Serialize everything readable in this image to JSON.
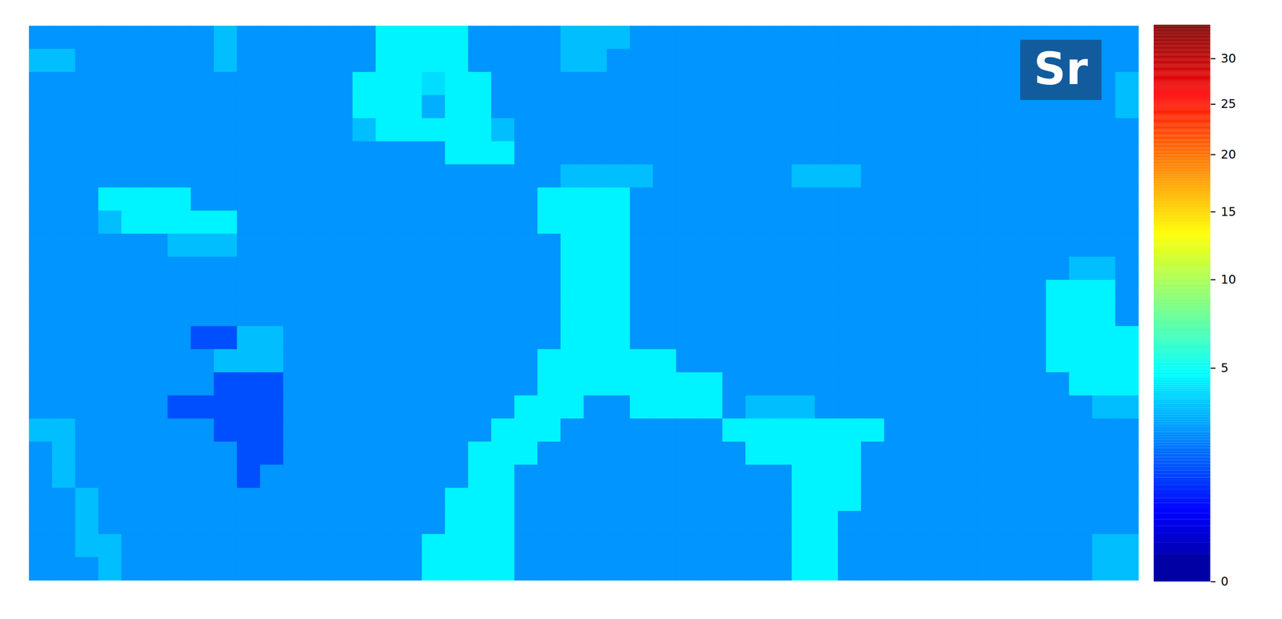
{
  "chart_data": {
    "type": "heatmap",
    "annotations": [
      {
        "text": "Sr"
      }
    ],
    "colorbar": {
      "range": [
        0,
        34
      ],
      "ticks": [
        0,
        5,
        10,
        15,
        20,
        25,
        30
      ]
    },
    "cells": [
      [
        2.5,
        2.5,
        2.5,
        2.5,
        2.5,
        2.5,
        2.5,
        2.5,
        3.3,
        2.5,
        2.5,
        2.5,
        2.5,
        2.5,
        2.5,
        4.5,
        4.5,
        4.5,
        4.5,
        2.5,
        2.5,
        2.5,
        2.5,
        3.3,
        3.3,
        3.3,
        2.5,
        2.5,
        2.5,
        2.5,
        2.5,
        2.5,
        2.5,
        2.5,
        2.5,
        2.5,
        2.5,
        2.5,
        2.5,
        2.5,
        2.5,
        2.5,
        2.5,
        2.5,
        2.5,
        2.5,
        2.5,
        2.5
      ],
      [
        3.3,
        3.3,
        2.5,
        2.5,
        2.5,
        2.5,
        2.5,
        2.5,
        3.3,
        2.5,
        2.5,
        2.5,
        2.5,
        2.5,
        2.5,
        4.5,
        4.5,
        4.5,
        4.5,
        2.5,
        2.5,
        2.5,
        2.5,
        3.3,
        3.3,
        2.5,
        2.5,
        2.5,
        2.5,
        2.5,
        2.5,
        2.5,
        2.5,
        2.5,
        2.5,
        2.5,
        2.5,
        2.5,
        2.5,
        2.5,
        2.5,
        2.5,
        2.5,
        2.5,
        2.5,
        2.5,
        2.5,
        2.5
      ],
      [
        2.5,
        2.5,
        2.5,
        2.5,
        2.5,
        2.5,
        2.5,
        2.5,
        2.5,
        2.5,
        2.5,
        2.5,
        2.5,
        2.5,
        4.5,
        4.5,
        4.5,
        4.0,
        4.5,
        4.5,
        2.5,
        2.5,
        2.5,
        2.5,
        2.5,
        2.5,
        2.5,
        2.5,
        2.5,
        2.5,
        2.5,
        2.5,
        2.5,
        2.5,
        2.5,
        2.5,
        2.5,
        2.5,
        2.5,
        2.5,
        2.5,
        2.5,
        2.5,
        2.5,
        2.5,
        2.5,
        2.5,
        3.3
      ],
      [
        2.5,
        2.5,
        2.5,
        2.5,
        2.5,
        2.5,
        2.5,
        2.5,
        2.5,
        2.5,
        2.5,
        2.5,
        2.5,
        2.5,
        4.5,
        4.5,
        4.5,
        3.0,
        4.5,
        4.5,
        2.5,
        2.5,
        2.5,
        2.5,
        2.5,
        2.5,
        2.5,
        2.5,
        2.5,
        2.5,
        2.5,
        2.5,
        2.5,
        2.5,
        2.5,
        2.5,
        2.5,
        2.5,
        2.5,
        2.5,
        2.5,
        2.5,
        2.5,
        2.5,
        2.5,
        2.5,
        2.5,
        3.3
      ],
      [
        2.5,
        2.5,
        2.5,
        2.5,
        2.5,
        2.5,
        2.5,
        2.5,
        2.5,
        2.5,
        2.5,
        2.5,
        2.5,
        2.5,
        3.3,
        4.5,
        4.5,
        4.5,
        4.5,
        4.5,
        3.3,
        2.5,
        2.5,
        2.5,
        2.5,
        2.5,
        2.5,
        2.5,
        2.5,
        2.5,
        2.5,
        2.5,
        2.5,
        2.5,
        2.5,
        2.5,
        2.5,
        2.5,
        2.5,
        2.5,
        2.5,
        2.5,
        2.5,
        2.5,
        2.5,
        2.5,
        2.5,
        2.5
      ],
      [
        2.5,
        2.5,
        2.5,
        2.5,
        2.5,
        2.5,
        2.5,
        2.5,
        2.5,
        2.5,
        2.5,
        2.5,
        2.5,
        2.5,
        2.5,
        2.5,
        2.5,
        2.5,
        4.5,
        4.5,
        4.5,
        2.5,
        2.5,
        2.5,
        2.5,
        2.5,
        2.5,
        2.5,
        2.5,
        2.5,
        2.5,
        2.5,
        2.5,
        2.5,
        2.5,
        2.5,
        2.5,
        2.5,
        2.5,
        2.5,
        2.5,
        2.5,
        2.5,
        2.5,
        2.5,
        2.5,
        2.5,
        2.5
      ],
      [
        2.5,
        2.5,
        2.5,
        2.5,
        2.5,
        2.5,
        2.5,
        2.5,
        2.5,
        2.5,
        2.5,
        2.5,
        2.5,
        2.5,
        2.5,
        2.5,
        2.5,
        2.5,
        2.5,
        2.5,
        2.5,
        2.5,
        2.5,
        3.3,
        3.3,
        3.3,
        3.3,
        2.5,
        2.5,
        2.5,
        2.5,
        2.5,
        2.5,
        3.3,
        3.3,
        3.3,
        2.5,
        2.5,
        2.5,
        2.5,
        2.5,
        2.5,
        2.5,
        2.5,
        2.5,
        2.5,
        2.5,
        2.5
      ],
      [
        2.5,
        2.5,
        2.5,
        4.5,
        4.5,
        4.5,
        4.5,
        2.5,
        2.5,
        2.5,
        2.5,
        2.5,
        2.5,
        2.5,
        2.5,
        2.5,
        2.5,
        2.5,
        2.5,
        2.5,
        2.5,
        2.5,
        4.5,
        4.5,
        4.5,
        4.5,
        2.5,
        2.5,
        2.5,
        2.5,
        2.5,
        2.5,
        2.5,
        2.5,
        2.5,
        2.5,
        2.5,
        2.5,
        2.5,
        2.5,
        2.5,
        2.5,
        2.5,
        2.5,
        2.5,
        2.5,
        2.5,
        2.5
      ],
      [
        2.5,
        2.5,
        2.5,
        3.3,
        4.5,
        4.5,
        4.5,
        4.5,
        4.5,
        2.5,
        2.5,
        2.5,
        2.5,
        2.5,
        2.5,
        2.5,
        2.5,
        2.5,
        2.5,
        2.5,
        2.5,
        2.5,
        4.5,
        4.5,
        4.5,
        4.5,
        2.5,
        2.5,
        2.5,
        2.5,
        2.5,
        2.5,
        2.5,
        2.5,
        2.5,
        2.5,
        2.5,
        2.5,
        2.5,
        2.5,
        2.5,
        2.5,
        2.5,
        2.5,
        2.5,
        2.5,
        2.5,
        2.5
      ],
      [
        2.5,
        2.5,
        2.5,
        2.5,
        2.5,
        2.5,
        3.3,
        3.3,
        3.3,
        2.5,
        2.5,
        2.5,
        2.5,
        2.5,
        2.5,
        2.5,
        2.5,
        2.5,
        2.5,
        2.5,
        2.5,
        2.5,
        2.5,
        4.5,
        4.5,
        4.5,
        2.5,
        2.5,
        2.5,
        2.5,
        2.5,
        2.5,
        2.5,
        2.5,
        2.5,
        2.5,
        2.5,
        2.5,
        2.5,
        2.5,
        2.5,
        2.5,
        2.5,
        2.5,
        2.5,
        2.5,
        2.5,
        2.5
      ],
      [
        2.5,
        2.5,
        2.5,
        2.5,
        2.5,
        2.5,
        2.5,
        2.5,
        2.5,
        2.5,
        2.5,
        2.5,
        2.5,
        2.5,
        2.5,
        2.5,
        2.5,
        2.5,
        2.5,
        2.5,
        2.5,
        2.5,
        2.5,
        4.5,
        4.5,
        4.5,
        2.5,
        2.5,
        2.5,
        2.5,
        2.5,
        2.5,
        2.5,
        2.5,
        2.5,
        2.5,
        2.5,
        2.5,
        2.5,
        2.5,
        2.5,
        2.5,
        2.5,
        2.5,
        2.5,
        3.3,
        3.3,
        2.5
      ],
      [
        2.5,
        2.5,
        2.5,
        2.5,
        2.5,
        2.5,
        2.5,
        2.5,
        2.5,
        2.5,
        2.5,
        2.5,
        2.5,
        2.5,
        2.5,
        2.5,
        2.5,
        2.5,
        2.5,
        2.5,
        2.5,
        2.5,
        2.5,
        4.5,
        4.5,
        4.5,
        2.5,
        2.5,
        2.5,
        2.5,
        2.5,
        2.5,
        2.5,
        2.5,
        2.5,
        2.5,
        2.5,
        2.5,
        2.5,
        2.5,
        2.5,
        2.5,
        2.5,
        2.5,
        4.5,
        4.5,
        4.5,
        2.5
      ],
      [
        2.5,
        2.5,
        2.5,
        2.5,
        2.5,
        2.5,
        2.5,
        2.5,
        2.5,
        2.5,
        2.5,
        2.5,
        2.5,
        2.5,
        2.5,
        2.5,
        2.5,
        2.5,
        2.5,
        2.5,
        2.5,
        2.5,
        2.5,
        4.5,
        4.5,
        4.5,
        2.5,
        2.5,
        2.5,
        2.5,
        2.5,
        2.5,
        2.5,
        2.5,
        2.5,
        2.5,
        2.5,
        2.5,
        2.5,
        2.5,
        2.5,
        2.5,
        2.5,
        2.5,
        4.5,
        4.5,
        4.5,
        2.5
      ],
      [
        2.5,
        2.5,
        2.5,
        2.5,
        2.5,
        2.5,
        2.5,
        1.4,
        1.4,
        3.3,
        3.3,
        2.5,
        2.5,
        2.5,
        2.5,
        2.5,
        2.5,
        2.5,
        2.5,
        2.5,
        2.5,
        2.5,
        2.5,
        4.5,
        4.5,
        4.5,
        2.5,
        2.5,
        2.5,
        2.5,
        2.5,
        2.5,
        2.5,
        2.5,
        2.5,
        2.5,
        2.5,
        2.5,
        2.5,
        2.5,
        2.5,
        2.5,
        2.5,
        2.5,
        4.5,
        4.5,
        4.5,
        4.5
      ],
      [
        2.5,
        2.5,
        2.5,
        2.5,
        2.5,
        2.5,
        2.5,
        2.5,
        3.3,
        3.3,
        3.3,
        2.5,
        2.5,
        2.5,
        2.5,
        2.5,
        2.5,
        2.5,
        2.5,
        2.5,
        2.5,
        2.5,
        4.5,
        4.5,
        4.5,
        4.5,
        4.5,
        4.5,
        2.5,
        2.5,
        2.5,
        2.5,
        2.5,
        2.5,
        2.5,
        2.5,
        2.5,
        2.5,
        2.5,
        2.5,
        2.5,
        2.5,
        2.5,
        2.5,
        4.5,
        4.5,
        4.5,
        4.5
      ],
      [
        2.5,
        2.5,
        2.5,
        2.5,
        2.5,
        2.5,
        2.5,
        2.5,
        1.4,
        1.4,
        1.4,
        2.5,
        2.5,
        2.5,
        2.5,
        2.5,
        2.5,
        2.5,
        2.5,
        2.5,
        2.5,
        2.5,
        4.5,
        4.5,
        4.5,
        4.5,
        4.5,
        4.5,
        4.5,
        4.5,
        2.5,
        2.5,
        2.5,
        2.5,
        2.5,
        2.5,
        2.5,
        2.5,
        2.5,
        2.5,
        2.5,
        2.5,
        2.5,
        2.5,
        2.5,
        4.5,
        4.5,
        4.5
      ],
      [
        2.5,
        2.5,
        2.5,
        2.5,
        2.5,
        2.5,
        1.4,
        1.4,
        1.4,
        1.4,
        1.4,
        2.5,
        2.5,
        2.5,
        2.5,
        2.5,
        2.5,
        2.5,
        2.5,
        2.5,
        2.5,
        4.5,
        4.5,
        4.5,
        2.5,
        2.5,
        4.5,
        4.5,
        4.5,
        4.5,
        2.5,
        3.3,
        3.3,
        3.3,
        2.5,
        2.5,
        2.5,
        2.5,
        2.5,
        2.5,
        2.5,
        2.5,
        2.5,
        2.5,
        2.5,
        2.5,
        3.3,
        3.3
      ],
      [
        3.3,
        3.3,
        2.5,
        2.5,
        2.5,
        2.5,
        2.5,
        2.5,
        1.4,
        1.4,
        1.4,
        2.5,
        2.5,
        2.5,
        2.5,
        2.5,
        2.5,
        2.5,
        2.5,
        2.5,
        4.5,
        4.5,
        4.5,
        2.5,
        2.5,
        2.5,
        2.5,
        2.5,
        2.5,
        2.5,
        4.5,
        4.5,
        4.5,
        4.5,
        4.5,
        4.5,
        4.5,
        2.5,
        2.5,
        2.5,
        2.5,
        2.5,
        2.5,
        2.5,
        2.5,
        2.5,
        2.5,
        2.5
      ],
      [
        2.5,
        3.3,
        2.5,
        2.5,
        2.5,
        2.5,
        2.5,
        2.5,
        2.5,
        1.4,
        1.4,
        2.5,
        2.5,
        2.5,
        2.5,
        2.5,
        2.5,
        2.5,
        2.5,
        4.5,
        4.5,
        4.5,
        2.5,
        2.5,
        2.5,
        2.5,
        2.5,
        2.5,
        2.5,
        2.5,
        2.5,
        4.5,
        4.5,
        4.5,
        4.5,
        4.5,
        2.5,
        2.5,
        2.5,
        2.5,
        2.5,
        2.5,
        2.5,
        2.5,
        2.5,
        2.5,
        2.5,
        2.5
      ],
      [
        2.5,
        3.3,
        2.5,
        2.5,
        2.5,
        2.5,
        2.5,
        2.5,
        2.5,
        1.4,
        2.5,
        2.5,
        2.5,
        2.5,
        2.5,
        2.5,
        2.5,
        2.5,
        2.5,
        4.5,
        4.5,
        2.5,
        2.5,
        2.5,
        2.5,
        2.5,
        2.5,
        2.5,
        2.5,
        2.5,
        2.5,
        2.5,
        2.5,
        4.5,
        4.5,
        4.5,
        2.5,
        2.5,
        2.5,
        2.5,
        2.5,
        2.5,
        2.5,
        2.5,
        2.5,
        2.5,
        2.5,
        2.5
      ],
      [
        2.5,
        2.5,
        3.3,
        2.5,
        2.5,
        2.5,
        2.5,
        2.5,
        2.5,
        2.5,
        2.5,
        2.5,
        2.5,
        2.5,
        2.5,
        2.5,
        2.5,
        2.5,
        4.5,
        4.5,
        4.5,
        2.5,
        2.5,
        2.5,
        2.5,
        2.5,
        2.5,
        2.5,
        2.5,
        2.5,
        2.5,
        2.5,
        2.5,
        4.5,
        4.5,
        4.5,
        2.5,
        2.5,
        2.5,
        2.5,
        2.5,
        2.5,
        2.5,
        2.5,
        2.5,
        2.5,
        2.5,
        2.5
      ],
      [
        2.5,
        2.5,
        3.3,
        2.5,
        2.5,
        2.5,
        2.5,
        2.5,
        2.5,
        2.5,
        2.5,
        2.5,
        2.5,
        2.5,
        2.5,
        2.5,
        2.5,
        2.5,
        4.5,
        4.5,
        4.5,
        2.5,
        2.5,
        2.5,
        2.5,
        2.5,
        2.5,
        2.5,
        2.5,
        2.5,
        2.5,
        2.5,
        2.5,
        4.5,
        4.5,
        2.5,
        2.5,
        2.5,
        2.5,
        2.5,
        2.5,
        2.5,
        2.5,
        2.5,
        2.5,
        2.5,
        2.5,
        2.5
      ],
      [
        2.5,
        2.5,
        3.3,
        3.3,
        2.5,
        2.5,
        2.5,
        2.5,
        2.5,
        2.5,
        2.5,
        2.5,
        2.5,
        2.5,
        2.5,
        2.5,
        2.5,
        4.5,
        4.5,
        4.5,
        4.5,
        2.5,
        2.5,
        2.5,
        2.5,
        2.5,
        2.5,
        2.5,
        2.5,
        2.5,
        2.5,
        2.5,
        2.5,
        4.5,
        4.5,
        2.5,
        2.5,
        2.5,
        2.5,
        2.5,
        2.5,
        2.5,
        2.5,
        2.5,
        2.5,
        2.5,
        3.3,
        3.3
      ],
      [
        2.5,
        2.5,
        2.5,
        3.3,
        2.5,
        2.5,
        2.5,
        2.5,
        2.5,
        2.5,
        2.5,
        2.5,
        2.5,
        2.5,
        2.5,
        2.5,
        2.5,
        4.5,
        4.5,
        4.5,
        4.5,
        2.5,
        2.5,
        2.5,
        2.5,
        2.5,
        2.5,
        2.5,
        2.5,
        2.5,
        2.5,
        2.5,
        2.5,
        4.5,
        4.5,
        2.5,
        2.5,
        2.5,
        2.5,
        2.5,
        2.5,
        2.5,
        2.5,
        2.5,
        2.5,
        2.5,
        3.3,
        3.3
      ]
    ]
  }
}
